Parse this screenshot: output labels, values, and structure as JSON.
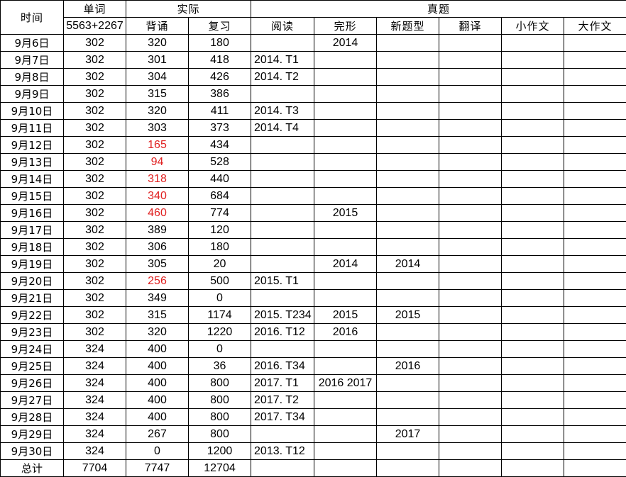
{
  "headers": {
    "time": "时间",
    "words": "单词",
    "words_sub": "5563+2267",
    "actual": "实际",
    "memorize": "背诵",
    "review": "复习",
    "exam": "真题",
    "reading": "阅读",
    "cloze": "完形",
    "new_type": "新题型",
    "translation": "翻译",
    "small_essay": "小作文",
    "big_essay": "大作文"
  },
  "colors": {
    "highlight": "#e02020"
  },
  "rows": [
    {
      "date": "9月6日",
      "words": "302",
      "memorize": "320",
      "review": "180",
      "reading": "",
      "cloze": "2014",
      "new_type": "",
      "translation": "",
      "small_essay": "",
      "big_essay": "",
      "highlight": false
    },
    {
      "date": "9月7日",
      "words": "302",
      "memorize": "301",
      "review": "418",
      "reading": "2014. T1",
      "cloze": "",
      "new_type": "",
      "translation": "",
      "small_essay": "",
      "big_essay": "",
      "highlight": false
    },
    {
      "date": "9月8日",
      "words": "302",
      "memorize": "304",
      "review": "426",
      "reading": "2014. T2",
      "cloze": "",
      "new_type": "",
      "translation": "",
      "small_essay": "",
      "big_essay": "",
      "highlight": false
    },
    {
      "date": "9月9日",
      "words": "302",
      "memorize": "315",
      "review": "386",
      "reading": "",
      "cloze": "",
      "new_type": "",
      "translation": "",
      "small_essay": "",
      "big_essay": "",
      "highlight": false
    },
    {
      "date": "9月10日",
      "words": "302",
      "memorize": "320",
      "review": "411",
      "reading": "2014. T3",
      "cloze": "",
      "new_type": "",
      "translation": "",
      "small_essay": "",
      "big_essay": "",
      "highlight": false
    },
    {
      "date": "9月11日",
      "words": "302",
      "memorize": "303",
      "review": "373",
      "reading": "2014. T4",
      "cloze": "",
      "new_type": "",
      "translation": "",
      "small_essay": "",
      "big_essay": "",
      "highlight": false
    },
    {
      "date": "9月12日",
      "words": "302",
      "memorize": "165",
      "review": "434",
      "reading": "",
      "cloze": "",
      "new_type": "",
      "translation": "",
      "small_essay": "",
      "big_essay": "",
      "highlight": true
    },
    {
      "date": "9月13日",
      "words": "302",
      "memorize": "94",
      "review": "528",
      "reading": "",
      "cloze": "",
      "new_type": "",
      "translation": "",
      "small_essay": "",
      "big_essay": "",
      "highlight": true
    },
    {
      "date": "9月14日",
      "words": "302",
      "memorize": "318",
      "review": "440",
      "reading": "",
      "cloze": "",
      "new_type": "",
      "translation": "",
      "small_essay": "",
      "big_essay": "",
      "highlight": true
    },
    {
      "date": "9月15日",
      "words": "302",
      "memorize": "340",
      "review": "684",
      "reading": "",
      "cloze": "",
      "new_type": "",
      "translation": "",
      "small_essay": "",
      "big_essay": "",
      "highlight": true
    },
    {
      "date": "9月16日",
      "words": "302",
      "memorize": "460",
      "review": "774",
      "reading": "",
      "cloze": "2015",
      "new_type": "",
      "translation": "",
      "small_essay": "",
      "big_essay": "",
      "highlight": true
    },
    {
      "date": "9月17日",
      "words": "302",
      "memorize": "389",
      "review": "120",
      "reading": "",
      "cloze": "",
      "new_type": "",
      "translation": "",
      "small_essay": "",
      "big_essay": "",
      "highlight": false
    },
    {
      "date": "9月18日",
      "words": "302",
      "memorize": "306",
      "review": "180",
      "reading": "",
      "cloze": "",
      "new_type": "",
      "translation": "",
      "small_essay": "",
      "big_essay": "",
      "highlight": false
    },
    {
      "date": "9月19日",
      "words": "302",
      "memorize": "305",
      "review": "20",
      "reading": "",
      "cloze": "2014",
      "new_type": "2014",
      "translation": "",
      "small_essay": "",
      "big_essay": "",
      "highlight": false
    },
    {
      "date": "9月20日",
      "words": "302",
      "memorize": "256",
      "review": "500",
      "reading": "2015. T1",
      "cloze": "",
      "new_type": "",
      "translation": "",
      "small_essay": "",
      "big_essay": "",
      "highlight": true
    },
    {
      "date": "9月21日",
      "words": "302",
      "memorize": "349",
      "review": "0",
      "reading": "",
      "cloze": "",
      "new_type": "",
      "translation": "",
      "small_essay": "",
      "big_essay": "",
      "highlight": false
    },
    {
      "date": "9月22日",
      "words": "302",
      "memorize": "315",
      "review": "1174",
      "reading": "2015. T234",
      "cloze": "2015",
      "new_type": "2015",
      "translation": "",
      "small_essay": "",
      "big_essay": "",
      "highlight": false
    },
    {
      "date": "9月23日",
      "words": "302",
      "memorize": "320",
      "review": "1220",
      "reading": "2016. T12",
      "cloze": "2016",
      "new_type": "",
      "translation": "",
      "small_essay": "",
      "big_essay": "",
      "highlight": false
    },
    {
      "date": "9月24日",
      "words": "324",
      "memorize": "400",
      "review": "0",
      "reading": "",
      "cloze": "",
      "new_type": "",
      "translation": "",
      "small_essay": "",
      "big_essay": "",
      "highlight": false
    },
    {
      "date": "9月25日",
      "words": "324",
      "memorize": "400",
      "review": "36",
      "reading": "2016. T34",
      "cloze": "",
      "new_type": "2016",
      "translation": "",
      "small_essay": "",
      "big_essay": "",
      "highlight": false
    },
    {
      "date": "9月26日",
      "words": "324",
      "memorize": "400",
      "review": "800",
      "reading": "2017. T1",
      "cloze": "2016 2017",
      "new_type": "",
      "translation": "",
      "small_essay": "",
      "big_essay": "",
      "highlight": false
    },
    {
      "date": "9月27日",
      "words": "324",
      "memorize": "400",
      "review": "800",
      "reading": "2017. T2",
      "cloze": "",
      "new_type": "",
      "translation": "",
      "small_essay": "",
      "big_essay": "",
      "highlight": false
    },
    {
      "date": "9月28日",
      "words": "324",
      "memorize": "400",
      "review": "800",
      "reading": "2017. T34",
      "cloze": "",
      "new_type": "",
      "translation": "",
      "small_essay": "",
      "big_essay": "",
      "highlight": false
    },
    {
      "date": "9月29日",
      "words": "324",
      "memorize": "267",
      "review": "800",
      "reading": "",
      "cloze": "",
      "new_type": "2017",
      "translation": "",
      "small_essay": "",
      "big_essay": "",
      "highlight": false
    },
    {
      "date": "9月30日",
      "words": "324",
      "memorize": "0",
      "review": "1200",
      "reading": " 2013. T12",
      "cloze": "",
      "new_type": "",
      "translation": "",
      "small_essay": "",
      "big_essay": "",
      "highlight": false
    }
  ],
  "total": {
    "label": "总计",
    "words": "7704",
    "memorize": "7747",
    "review": "12704"
  }
}
